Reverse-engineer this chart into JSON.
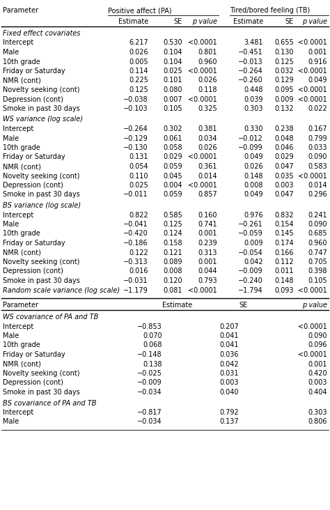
{
  "section1_header": "Fixed effect covariates",
  "section1_rows": [
    [
      "Intercept",
      "6.217",
      "0.530",
      "<0.0001",
      "3.481",
      "0.655",
      "<0.0001"
    ],
    [
      "Male",
      "0.026",
      "0.104",
      "0.801",
      "−0.451",
      "0.130",
      "0.001"
    ],
    [
      "10th grade",
      "0.005",
      "0.104",
      "0.960",
      "−0.013",
      "0.125",
      "0.916"
    ],
    [
      "Friday or Saturday",
      "0.114",
      "0.025",
      "<0.0001",
      "−0.264",
      "0.032",
      "<0.0001"
    ],
    [
      "NMR (cont)",
      "0.225",
      "0.101",
      "0.026",
      "−0.260",
      "0.129",
      "0.049"
    ],
    [
      "Novelty seeking (cont)",
      "0.125",
      "0.080",
      "0.118",
      "0.448",
      "0.095",
      "<0.0001"
    ],
    [
      "Depression (cont)",
      "−0.038",
      "0.007",
      "<0.0001",
      "0.039",
      "0.009",
      "<0.0001"
    ],
    [
      "Smoke in past 30 days",
      "−0.103",
      "0.105",
      "0.325",
      "0.303",
      "0.132",
      "0.022"
    ]
  ],
  "section2_header": "WS variance (log scale)",
  "section2_rows": [
    [
      "Intercept",
      "−0.264",
      "0.302",
      "0.381",
      "0.330",
      "0.238",
      "0.167"
    ],
    [
      "Male",
      "−0.129",
      "0.061",
      "0.034",
      "−0.012",
      "0.048",
      "0.799"
    ],
    [
      "10th grade",
      "−0.130",
      "0.058",
      "0.026",
      "−0.099",
      "0.046",
      "0.033"
    ],
    [
      "Friday or Saturday",
      "0.131",
      "0.029",
      "<0.0001",
      "0.049",
      "0.029",
      "0.090"
    ],
    [
      "NMR (cont)",
      "0.054",
      "0.059",
      "0.361",
      "0.026",
      "0.047",
      "0.583"
    ],
    [
      "Novelty seeking (cont)",
      "0.110",
      "0.045",
      "0.014",
      "0.148",
      "0.035",
      "<0.0001"
    ],
    [
      "Depression (cont)",
      "0.025",
      "0.004",
      "<0.0001",
      "0.008",
      "0.003",
      "0.014"
    ],
    [
      "Smoke in past 30 days",
      "−0.011",
      "0.059",
      "0.857",
      "0.049",
      "0.047",
      "0.296"
    ]
  ],
  "section3_header": "BS variance (log scale)",
  "section3_rows": [
    [
      "Intercept",
      "0.822",
      "0.585",
      "0.160",
      "0.976",
      "0.832",
      "0.241"
    ],
    [
      "Male",
      "−0.041",
      "0.125",
      "0.741",
      "−0.261",
      "0.154",
      "0.090"
    ],
    [
      "10th grade",
      "−0.420",
      "0.124",
      "0.001",
      "−0.059",
      "0.145",
      "0.685"
    ],
    [
      "Friday or Saturday",
      "−0.186",
      "0.158",
      "0.239",
      "0.009",
      "0.174",
      "0.960"
    ],
    [
      "NMR (cont)",
      "0.122",
      "0.121",
      "0.313",
      "−0.054",
      "0.166",
      "0.747"
    ],
    [
      "Novelty seeking (cont)",
      "−0.313",
      "0.089",
      "0.001",
      "0.042",
      "0.112",
      "0.705"
    ],
    [
      "Depression (cont)",
      "0.016",
      "0.008",
      "0.044",
      "−0.009",
      "0.011",
      "0.398"
    ],
    [
      "Smoke in past 30 days",
      "−0.031",
      "0.120",
      "0.793",
      "−0.240",
      "0.148",
      "0.105"
    ]
  ],
  "section3_last_row": [
    "Random scale variance (log scale)",
    "−1.179",
    "0.081",
    "<0.0001",
    "−1.794",
    "0.093",
    "<0.0001"
  ],
  "section4_header": "WS covariance of PA and TB",
  "section4_rows": [
    [
      "Intercept",
      "−0.853",
      "0.207",
      "<0.0001"
    ],
    [
      "Male",
      "0.070",
      "0.041",
      "0.090"
    ],
    [
      "10th grade",
      "0.068",
      "0.041",
      "0.096"
    ],
    [
      "Friday or Saturday",
      "−0.148",
      "0.036",
      "<0.0001"
    ],
    [
      "NMR (cont)",
      "0.138",
      "0.042",
      "0.001"
    ],
    [
      "Novelty seeking (cont)",
      "−0.025",
      "0.031",
      "0.420"
    ],
    [
      "Depression (cont)",
      "−0.009",
      "0.003",
      "0.003"
    ],
    [
      "Smoke in past 30 days",
      "−0.034",
      "0.040",
      "0.404"
    ]
  ],
  "section5_header": "BS covariance of PA and TB",
  "section5_rows": [
    [
      "Intercept",
      "−0.817",
      "0.792",
      "0.303"
    ],
    [
      "Male",
      "−0.034",
      "0.137",
      "0.806"
    ]
  ],
  "bg_color": "#ffffff",
  "line_color": "#000000"
}
